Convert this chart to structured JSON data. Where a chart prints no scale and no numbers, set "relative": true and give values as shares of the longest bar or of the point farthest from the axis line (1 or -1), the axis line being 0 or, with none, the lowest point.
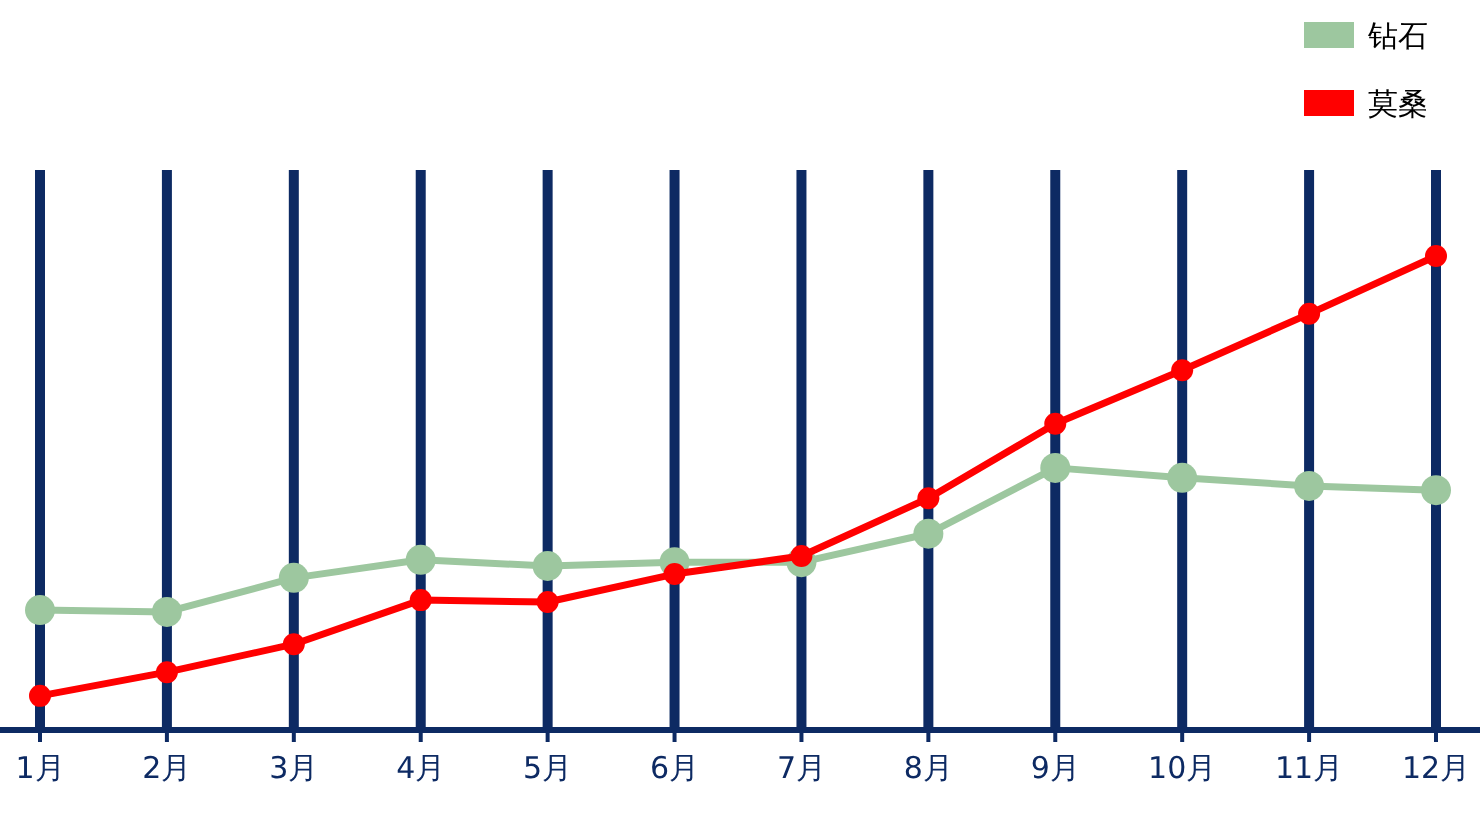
{
  "chart_data": {
    "type": "line",
    "relative": true,
    "categories": [
      "1月",
      "2月",
      "3月",
      "4月",
      "5月",
      "6月",
      "7月",
      "8月",
      "9月",
      "10月",
      "11月",
      "12月"
    ],
    "series": [
      {
        "name": "钻石",
        "color": "#9dc79f",
        "values": [
          0.253,
          0.249,
          0.321,
          0.359,
          0.346,
          0.354,
          0.354,
          0.414,
          0.553,
          0.532,
          0.515,
          0.506
        ]
      },
      {
        "name": "莫桑",
        "color": "#ff0000",
        "values": [
          0.072,
          0.122,
          0.181,
          0.274,
          0.27,
          0.329,
          0.367,
          0.489,
          0.646,
          0.759,
          0.878,
          1
        ]
      }
    ],
    "grid": "x",
    "legend": "top right",
    "marker": "circle",
    "line_style": "solid"
  }
}
